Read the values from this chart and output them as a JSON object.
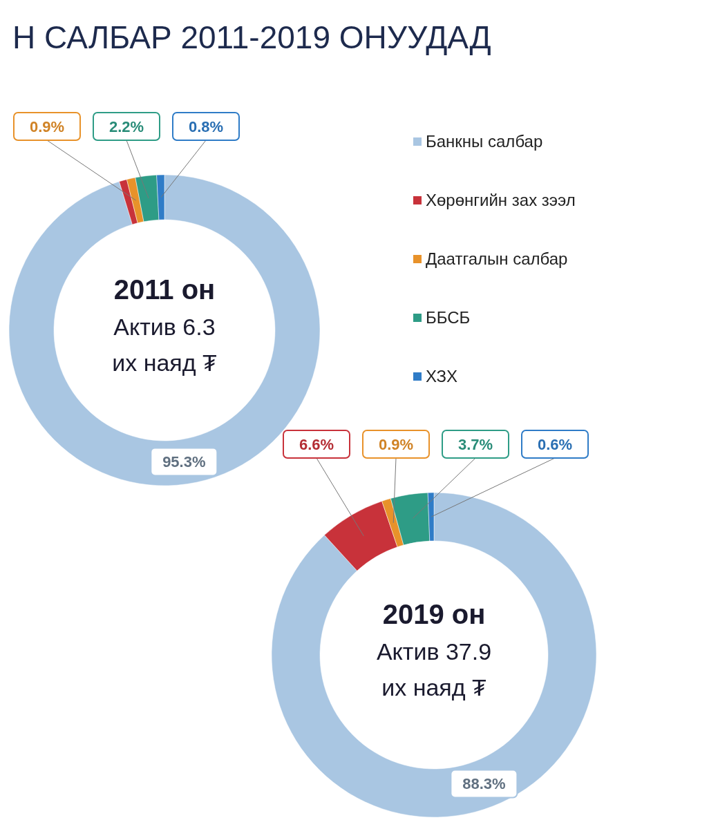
{
  "chart_data": [
    {
      "type": "donut",
      "title": "Н САЛБАР 2011-2019 ОНУУДАД",
      "categories": [
        "Банкны салбар",
        "Хөрөнгийн зах зээл",
        "Даатгалын салбар",
        "ББСБ",
        "ХЗХ"
      ],
      "values": [
        95.3,
        0.8,
        0.9,
        2.2,
        0.8
      ],
      "colors": [
        "#a9c6e2",
        "#c8323a",
        "#e8922a",
        "#2e9c86",
        "#2f7cc7"
      ],
      "value_labels": [
        "95.3%",
        null,
        "0.9%",
        "2.2%",
        "0.8%"
      ],
      "annotations": [
        "2011 он",
        "Актив 6.3",
        "их наяд ₮"
      ],
      "legend": "right"
    },
    {
      "type": "donut",
      "categories": [
        null,
        null,
        null,
        null,
        null
      ],
      "values": [
        88.3,
        6.6,
        0.9,
        3.7,
        0.6
      ],
      "colors": [
        "#a9c6e2",
        "#c8323a",
        "#e8922a",
        "#2e9c86",
        "#2f7cc7"
      ],
      "value_labels": [
        "88.3%",
        "6.6%",
        "0.9%",
        "3.7%",
        "0.6%"
      ],
      "annotations": [
        "2019 он",
        "Актив 37.9",
        "их наяд ₮"
      ]
    }
  ]
}
